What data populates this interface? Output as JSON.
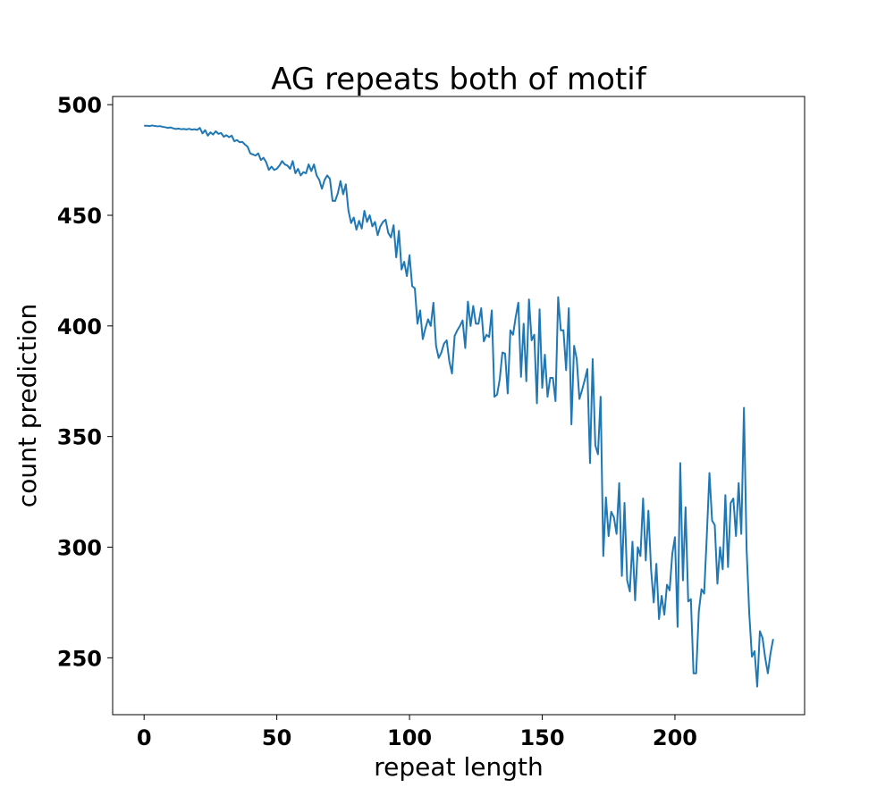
{
  "chart_data": {
    "type": "line",
    "title": "AG repeats both of motif",
    "x_label": "repeat length",
    "y_label": "count prediction",
    "color": "#1f77b4",
    "x": [
      0,
      1,
      2,
      3,
      4,
      5,
      6,
      7,
      8,
      9,
      10,
      11,
      12,
      13,
      14,
      15,
      16,
      17,
      18,
      19,
      20,
      21,
      22,
      23,
      24,
      25,
      26,
      27,
      28,
      29,
      30,
      31,
      32,
      33,
      34,
      35,
      36,
      37,
      38,
      39,
      40,
      41,
      42,
      43,
      44,
      45,
      46,
      47,
      48,
      49,
      50,
      51,
      52,
      53,
      54,
      55,
      56,
      57,
      58,
      59,
      60,
      61,
      62,
      63,
      64,
      65,
      66,
      67,
      68,
      69,
      70,
      71,
      72,
      73,
      74,
      75,
      76,
      77,
      78,
      79,
      80,
      81,
      82,
      83,
      84,
      85,
      86,
      87,
      88,
      89,
      90,
      91,
      92,
      93,
      94,
      95,
      96,
      97,
      98,
      99,
      100,
      101,
      102,
      103,
      104,
      105,
      106,
      107,
      108,
      109,
      110,
      111,
      112,
      113,
      114,
      115,
      116,
      117,
      118,
      119,
      120,
      121,
      122,
      123,
      124,
      125,
      126,
      127,
      128,
      129,
      130,
      131,
      132,
      133,
      134,
      135,
      136,
      137,
      138,
      139,
      140,
      141,
      142,
      143,
      144,
      145,
      146,
      147,
      148,
      149,
      150,
      151,
      152,
      153,
      154,
      155,
      156,
      157,
      158,
      159,
      160,
      161,
      162,
      163,
      164,
      165,
      166,
      167,
      168,
      169,
      170,
      171,
      172,
      173,
      174,
      175,
      176,
      177,
      178,
      179,
      180,
      181,
      182,
      183,
      184,
      185,
      186,
      187,
      188,
      189,
      190,
      191,
      192,
      193,
      194,
      195,
      196,
      197,
      198,
      199,
      200,
      201,
      202,
      203,
      204,
      205,
      206,
      207,
      208,
      209,
      210,
      211,
      212,
      213,
      214,
      215,
      216,
      217,
      218,
      219,
      220,
      221,
      222,
      223,
      224,
      225,
      226,
      227,
      228,
      229,
      230,
      231,
      232,
      233,
      234,
      235,
      236,
      237
    ],
    "values": [
      490.5,
      490.5,
      490.3,
      490.6,
      490.4,
      490.2,
      490.3,
      490,
      489.8,
      489.5,
      489.7,
      489.3,
      489,
      489.2,
      488.9,
      489,
      488.8,
      489.1,
      488.7,
      488.9,
      488.6,
      489.5,
      487,
      488.5,
      486,
      487.5,
      486.5,
      488,
      486.8,
      487.2,
      485.5,
      486.2,
      485.3,
      486,
      483.5,
      484,
      483,
      483.2,
      482,
      481,
      478,
      477.5,
      477,
      478,
      475,
      476,
      474,
      470.5,
      472,
      470.5,
      471,
      472.5,
      474.5,
      473,
      472.5,
      471,
      474.5,
      469,
      471,
      468,
      469.5,
      469,
      473,
      470,
      473,
      468,
      466,
      462,
      466,
      468,
      466.5,
      456.5,
      456.5,
      460,
      465.5,
      459.5,
      464,
      452,
      446.5,
      449,
      443.5,
      447.5,
      444,
      452,
      447,
      450,
      445,
      447,
      441,
      445,
      447,
      448,
      442,
      440,
      445.5,
      431,
      443,
      425.5,
      429,
      422.5,
      432,
      418,
      417,
      401,
      407,
      394,
      399,
      403,
      400,
      410.5,
      391,
      385.5,
      388,
      392,
      393.5,
      384,
      378.5,
      395.5,
      398,
      400,
      402.5,
      390,
      411,
      400,
      409,
      401,
      401,
      408,
      393,
      396,
      395,
      407,
      368,
      369,
      376,
      388,
      387.5,
      369.5,
      398,
      396,
      404,
      410.5,
      377,
      401,
      375,
      412,
      393.5,
      396,
      365,
      407.5,
      372,
      387,
      368,
      376.5,
      376.5,
      366,
      413,
      398,
      398,
      380,
      408,
      355.5,
      391,
      385,
      367,
      371,
      375.5,
      380.5,
      338,
      385,
      346,
      342,
      368,
      296,
      322.5,
      305,
      316,
      313.5,
      306,
      329,
      287,
      320,
      285,
      280,
      302.5,
      276,
      300,
      296,
      322,
      294,
      316.5,
      290,
      275,
      292.5,
      267.5,
      278,
      269.5,
      283,
      280.5,
      297,
      304.5,
      264,
      338,
      285,
      318,
      275.5,
      276.5,
      243,
      243,
      271,
      281,
      279,
      305,
      333.5,
      312,
      310,
      283.5,
      300,
      290,
      323.5,
      291,
      320,
      322,
      305,
      329,
      306,
      363,
      299,
      270,
      250.5,
      253,
      237,
      262,
      259,
      250,
      243,
      252,
      258.5
    ],
    "xlim": [
      -11.85,
      248.85
    ],
    "ylim": [
      224.3,
      503.7
    ],
    "xticks": [
      0,
      50,
      100,
      150,
      200
    ],
    "yticks": [
      250,
      300,
      350,
      400,
      450,
      500
    ]
  }
}
